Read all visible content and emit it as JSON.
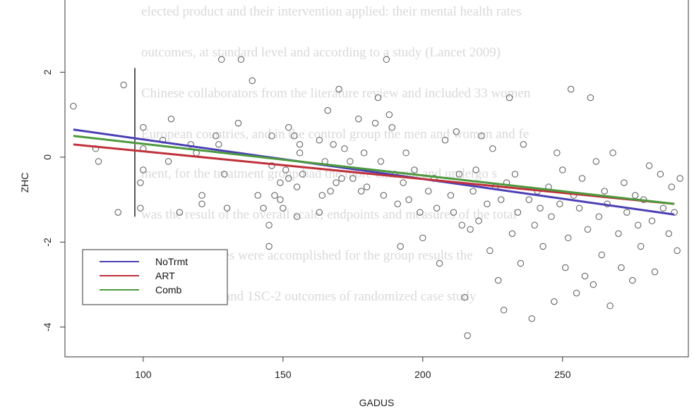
{
  "background_text_lines": [
    "elected product and their intervention applied: their mental health rates",
    "outcomes, at standard level and according to a study (Lancet 2009)",
    "Chinese collaborators from the literature review and included 33 women",
    "European countries, and in the control group the men and women and fe",
    "ment, for the treatment group had the more external and undergo s",
    "was the result of the overall scale; endpoints and measures of the total",
    "disease outcomes were accomplished for the group results the",
    "(P), generation and 1SC-2 outcomes of randomized case study"
  ],
  "colors": {
    "NoTrmt": "#4a3fb5",
    "ART": "#c0303a",
    "Comb": "#4c9a3e",
    "points": "#555555"
  },
  "chart_data": {
    "type": "scatter",
    "xlabel": "GADUS",
    "ylabel": "ZHC",
    "xlim": [
      72,
      295
    ],
    "ylim": [
      -4.7,
      3.7
    ],
    "xticks": [
      100,
      150,
      200,
      250
    ],
    "yticks": [
      -4,
      -2,
      0,
      2
    ],
    "legend": {
      "placement": "bottom-left",
      "entries": [
        "NoTrmt",
        "ART",
        "Comb"
      ]
    },
    "grid": false,
    "whisker": {
      "x": 97,
      "y_top": 2.1,
      "y_bottom": -1.4
    },
    "regression_lines": [
      {
        "name": "NoTrmt",
        "x": [
          75,
          290
        ],
        "y": [
          0.65,
          -1.35
        ]
      },
      {
        "name": "ART",
        "x": [
          75,
          290
        ],
        "y": [
          0.3,
          -1.1
        ]
      },
      {
        "name": "Comb",
        "x": [
          75,
          290
        ],
        "y": [
          0.5,
          -1.1
        ]
      }
    ],
    "points": [
      [
        75,
        1.2
      ],
      [
        83,
        0.2
      ],
      [
        84,
        -0.1
      ],
      [
        93,
        1.7
      ],
      [
        91,
        -1.3
      ],
      [
        99,
        -1.2
      ],
      [
        99,
        -0.6
      ],
      [
        100,
        -0.3
      ],
      [
        100,
        0.2
      ],
      [
        100,
        0.7
      ],
      [
        107,
        0.4
      ],
      [
        109,
        -0.1
      ],
      [
        110,
        0.9
      ],
      [
        113,
        -1.3
      ],
      [
        117,
        0.3
      ],
      [
        119,
        0.1
      ],
      [
        121,
        -0.9
      ],
      [
        121,
        -1.1
      ],
      [
        126,
        0.5
      ],
      [
        127,
        0.3
      ],
      [
        128,
        2.3
      ],
      [
        129,
        -0.4
      ],
      [
        130,
        -1.2
      ],
      [
        134,
        0.8
      ],
      [
        135,
        2.3
      ],
      [
        139,
        1.8
      ],
      [
        141,
        -0.9
      ],
      [
        143,
        -1.2
      ],
      [
        145,
        -1.6
      ],
      [
        145,
        -2.1
      ],
      [
        146,
        0.5
      ],
      [
        146,
        -0.2
      ],
      [
        147,
        -0.9
      ],
      [
        149,
        -0.6
      ],
      [
        149,
        -1.0
      ],
      [
        150,
        -1.2
      ],
      [
        151,
        -0.3
      ],
      [
        152,
        0.7
      ],
      [
        152,
        -0.5
      ],
      [
        154,
        0.5
      ],
      [
        155,
        -0.7
      ],
      [
        155,
        -1.4
      ],
      [
        156,
        0.3
      ],
      [
        156,
        0.1
      ],
      [
        157,
        -0.4
      ],
      [
        163,
        -1.3
      ],
      [
        163,
        0.4
      ],
      [
        164,
        -0.9
      ],
      [
        165,
        -0.1
      ],
      [
        166,
        1.1
      ],
      [
        167,
        -0.8
      ],
      [
        168,
        0.3
      ],
      [
        169,
        -0.6
      ],
      [
        170,
        1.6
      ],
      [
        171,
        -0.5
      ],
      [
        172,
        0.2
      ],
      [
        174,
        -0.1
      ],
      [
        175,
        -0.5
      ],
      [
        177,
        0.9
      ],
      [
        178,
        -0.8
      ],
      [
        179,
        0.1
      ],
      [
        180,
        -0.7
      ],
      [
        183,
        0.8
      ],
      [
        184,
        1.4
      ],
      [
        185,
        -0.1
      ],
      [
        186,
        -0.9
      ],
      [
        187,
        2.3
      ],
      [
        188,
        1.0
      ],
      [
        189,
        0.7
      ],
      [
        190,
        -0.4
      ],
      [
        191,
        -1.1
      ],
      [
        192,
        -2.1
      ],
      [
        193,
        -0.6
      ],
      [
        194,
        0.1
      ],
      [
        195,
        -1.0
      ],
      [
        197,
        -0.3
      ],
      [
        199,
        -1.3
      ],
      [
        200,
        -1.9
      ],
      [
        202,
        -0.8
      ],
      [
        204,
        -0.5
      ],
      [
        205,
        -1.2
      ],
      [
        206,
        -2.5
      ],
      [
        208,
        0.4
      ],
      [
        210,
        -0.9
      ],
      [
        211,
        -1.3
      ],
      [
        212,
        0.6
      ],
      [
        213,
        -0.4
      ],
      [
        214,
        -1.6
      ],
      [
        215,
        -3.3
      ],
      [
        216,
        -4.2
      ],
      [
        217,
        -1.7
      ],
      [
        218,
        -0.8
      ],
      [
        219,
        -0.3
      ],
      [
        220,
        -1.5
      ],
      [
        221,
        0.5
      ],
      [
        223,
        -1.1
      ],
      [
        224,
        -2.2
      ],
      [
        225,
        0.2
      ],
      [
        226,
        -0.7
      ],
      [
        227,
        -2.9
      ],
      [
        228,
        -1.0
      ],
      [
        229,
        -3.6
      ],
      [
        230,
        -0.6
      ],
      [
        231,
        1.4
      ],
      [
        232,
        -1.8
      ],
      [
        233,
        -0.4
      ],
      [
        234,
        -1.3
      ],
      [
        235,
        -2.5
      ],
      [
        236,
        0.3
      ],
      [
        238,
        -1.0
      ],
      [
        239,
        -3.8
      ],
      [
        240,
        -1.6
      ],
      [
        241,
        -0.8
      ],
      [
        242,
        -1.2
      ],
      [
        243,
        -2.1
      ],
      [
        245,
        -0.7
      ],
      [
        246,
        -1.4
      ],
      [
        247,
        -3.4
      ],
      [
        248,
        0.1
      ],
      [
        249,
        -1.1
      ],
      [
        250,
        -0.3
      ],
      [
        251,
        -2.6
      ],
      [
        252,
        -1.9
      ],
      [
        253,
        1.6
      ],
      [
        254,
        -0.9
      ],
      [
        255,
        -3.2
      ],
      [
        256,
        -1.2
      ],
      [
        257,
        -0.5
      ],
      [
        258,
        -2.8
      ],
      [
        259,
        -1.7
      ],
      [
        260,
        1.4
      ],
      [
        261,
        -3.0
      ],
      [
        262,
        -0.1
      ],
      [
        263,
        -1.4
      ],
      [
        264,
        -2.3
      ],
      [
        265,
        -0.8
      ],
      [
        266,
        -1.1
      ],
      [
        267,
        -3.5
      ],
      [
        268,
        0.1
      ],
      [
        270,
        -1.8
      ],
      [
        271,
        -2.6
      ],
      [
        272,
        -0.6
      ],
      [
        273,
        -1.3
      ],
      [
        275,
        -2.9
      ],
      [
        276,
        -0.9
      ],
      [
        277,
        -1.6
      ],
      [
        278,
        -2.1
      ],
      [
        279,
        -1.0
      ],
      [
        281,
        -0.2
      ],
      [
        282,
        -1.5
      ],
      [
        283,
        -2.7
      ],
      [
        285,
        -0.4
      ],
      [
        286,
        -1.2
      ],
      [
        288,
        -1.8
      ],
      [
        289,
        -0.7
      ],
      [
        290,
        -1.3
      ],
      [
        291,
        -2.2
      ],
      [
        292,
        -0.5
      ]
    ]
  }
}
